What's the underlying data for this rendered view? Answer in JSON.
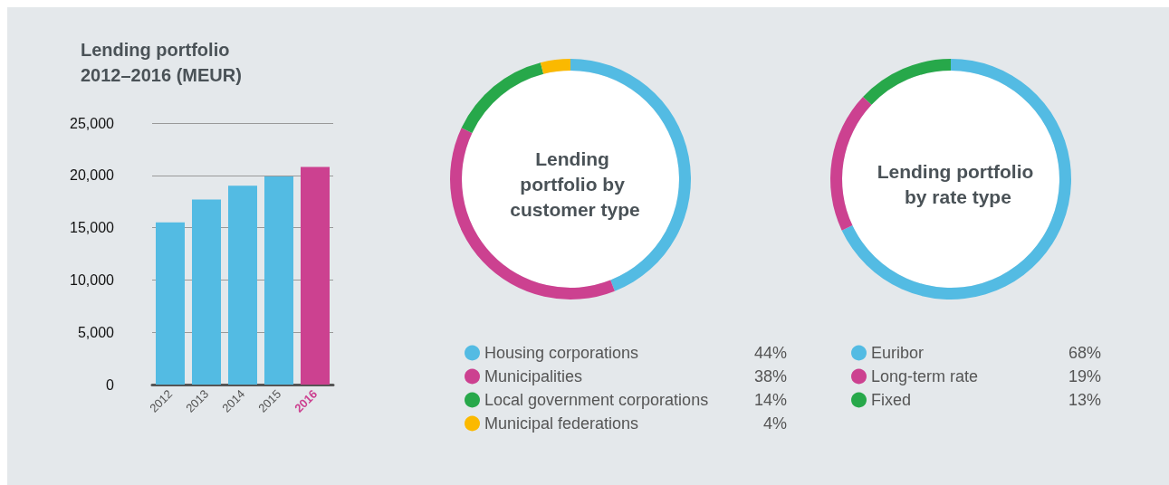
{
  "chart_data": [
    {
      "type": "bar",
      "title": "Lending portfolio 2012–2016 (MEUR)",
      "categories": [
        "2012",
        "2013",
        "2014",
        "2015",
        "2016"
      ],
      "values": [
        15500,
        17700,
        19000,
        19900,
        20800
      ],
      "colors": [
        "#53bbe3",
        "#53bbe3",
        "#53bbe3",
        "#53bbe3",
        "#cc4190"
      ],
      "ylim": [
        0,
        25000
      ],
      "yticks": [
        0,
        {
          "value": 5000,
          "label": "5,000"
        },
        {
          "value": 10000,
          "label": "10,000"
        },
        {
          "value": 15000,
          "label": "15,000"
        },
        {
          "value": 20000,
          "label": "20,000"
        },
        {
          "value": 25000,
          "label": "25,000"
        }
      ],
      "grid": "y",
      "legend": false
    },
    {
      "type": "donut",
      "title": "Lending portfolio by customer type",
      "categories": [
        "Housing corporations",
        "Municipalities",
        "Local government corporations",
        "Municipal federations"
      ],
      "values": [
        44,
        38,
        14,
        4
      ],
      "value_labels": [
        "44%",
        "38%",
        "14%",
        "4%"
      ],
      "colors": [
        "#53bbe3",
        "#cc4190",
        "#27a84a",
        "#fbb900"
      ],
      "legend": "bottom"
    },
    {
      "type": "donut",
      "title": "Lending portfolio by rate type",
      "categories": [
        "Euribor",
        "Long-term rate",
        "Fixed"
      ],
      "values": [
        68,
        19,
        13
      ],
      "value_labels": [
        "68%",
        "19%",
        "13%"
      ],
      "colors": [
        "#53bbe3",
        "#cc4190",
        "#27a84a"
      ],
      "legend": "bottom"
    }
  ]
}
